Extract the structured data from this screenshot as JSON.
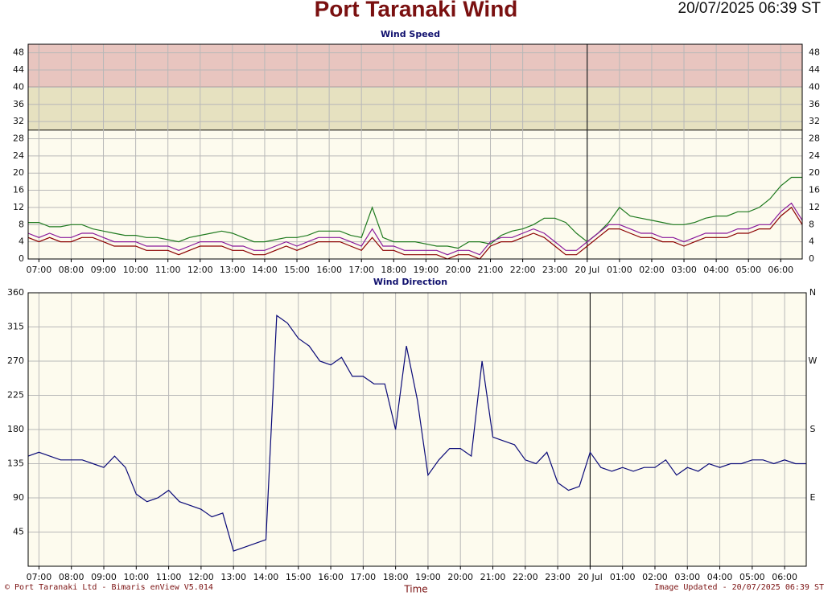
{
  "header": {
    "title": "Port Taranaki Wind",
    "timestamp": "20/07/2025 06:39 ST"
  },
  "footer": {
    "copyright": "© Port Taranaki Ltd - Bimaris enView V5.014",
    "axis_label": "Time",
    "updated": "Image Updated - 20/07/2025 06:39 ST"
  },
  "chart_data": [
    {
      "type": "line",
      "title": "Wind Speed",
      "x": [
        "06:40",
        "07:00",
        "07:20",
        "07:40",
        "08:00",
        "08:20",
        "08:40",
        "09:00",
        "09:20",
        "09:40",
        "10:00",
        "10:20",
        "10:40",
        "11:00",
        "11:20",
        "11:40",
        "12:00",
        "12:20",
        "12:40",
        "13:00",
        "13:20",
        "13:40",
        "14:00",
        "14:20",
        "14:40",
        "15:00",
        "15:20",
        "15:40",
        "16:00",
        "16:20",
        "16:40",
        "17:00",
        "17:20",
        "17:40",
        "18:00",
        "18:20",
        "18:40",
        "19:00",
        "19:20",
        "19:40",
        "20:00",
        "20:20",
        "20:40",
        "21:00",
        "21:20",
        "21:40",
        "22:00",
        "22:20",
        "22:40",
        "23:00",
        "23:20",
        "23:40",
        "00:00",
        "00:20",
        "00:40",
        "01:00",
        "01:20",
        "01:40",
        "02:00",
        "02:20",
        "02:40",
        "03:00",
        "03:20",
        "03:40",
        "04:00",
        "04:20",
        "04:40",
        "05:00",
        "05:20",
        "05:40",
        "06:00",
        "06:20",
        "06:40"
      ],
      "series": [
        {
          "color": "#1f7a1f",
          "values": [
            8.5,
            8.5,
            7.5,
            7.5,
            8,
            8,
            7,
            6.5,
            6,
            5.5,
            5.5,
            5,
            5,
            4.5,
            4,
            5,
            5.5,
            6,
            6.5,
            6,
            5,
            4,
            4,
            4.5,
            5,
            5,
            5.5,
            6.5,
            6.5,
            6.5,
            5.5,
            5,
            12,
            5,
            4,
            4,
            4,
            3.5,
            3,
            3,
            2.5,
            4,
            4,
            3.5,
            5.5,
            6.5,
            7,
            8,
            9.5,
            9.5,
            8.5,
            6,
            4,
            6,
            8.5,
            12,
            10,
            9.5,
            9,
            8.5,
            8,
            8,
            8.5,
            9.5,
            10,
            10,
            11,
            11,
            12,
            14,
            17,
            19,
            19
          ]
        },
        {
          "color": "#8b0000",
          "values": [
            5,
            4,
            5,
            4,
            4,
            5,
            5,
            4,
            3,
            3,
            3,
            2,
            2,
            2,
            1,
            2,
            3,
            3,
            3,
            2,
            2,
            1,
            1,
            2,
            3,
            2,
            3,
            4,
            4,
            4,
            3,
            2,
            5,
            2,
            2,
            1,
            1,
            1,
            1,
            0,
            1,
            1,
            0,
            3,
            4,
            4,
            5,
            6,
            5,
            3,
            1,
            1,
            3,
            5,
            7,
            7,
            6,
            5,
            5,
            4,
            4,
            3,
            4,
            5,
            5,
            5,
            6,
            6,
            7,
            7,
            10,
            12,
            8
          ]
        },
        {
          "color": "#8a1a9b",
          "values": [
            6,
            5,
            6,
            5,
            5,
            6,
            6,
            5,
            4,
            4,
            4,
            3,
            3,
            3,
            2,
            3,
            4,
            4,
            4,
            3,
            3,
            2,
            2,
            3,
            4,
            3,
            4,
            5,
            5,
            5,
            4,
            3,
            7,
            3,
            3,
            2,
            2,
            2,
            2,
            1,
            2,
            2,
            1,
            4,
            5,
            5,
            6,
            7,
            6,
            4,
            2,
            2,
            4,
            6,
            8,
            8,
            7,
            6,
            6,
            5,
            5,
            4,
            5,
            6,
            6,
            6,
            7,
            7,
            8,
            8,
            11,
            13,
            9
          ]
        }
      ],
      "ylim": [
        0,
        50
      ],
      "yticks": [
        0,
        4,
        8,
        12,
        16,
        20,
        24,
        28,
        32,
        36,
        40,
        44,
        48
      ],
      "bands": [
        {
          "from": 40,
          "to": 50,
          "color": "#e8c5bf"
        },
        {
          "from": 30,
          "to": 40,
          "color": "#e6e1c0"
        }
      ],
      "xticks": [
        "07:00",
        "08:00",
        "09:00",
        "10:00",
        "11:00",
        "12:00",
        "13:00",
        "14:00",
        "15:00",
        "16:00",
        "17:00",
        "18:00",
        "19:00",
        "20:00",
        "21:00",
        "22:00",
        "23:00",
        {
          "value": "00:00",
          "label": "20 Jul"
        },
        "01:00",
        "02:00",
        "03:00",
        "04:00",
        "05:00",
        "06:00"
      ],
      "day_line": "00:00",
      "grid": true
    },
    {
      "type": "line",
      "title": "Wind Direction",
      "x": [
        "06:40",
        "07:00",
        "07:20",
        "07:40",
        "08:00",
        "08:20",
        "08:40",
        "09:00",
        "09:20",
        "09:40",
        "10:00",
        "10:20",
        "10:40",
        "11:00",
        "11:20",
        "11:40",
        "12:00",
        "12:20",
        "12:40",
        "13:00",
        "13:20",
        "13:40",
        "14:00",
        "14:20",
        "14:40",
        "15:00",
        "15:20",
        "15:40",
        "16:00",
        "16:20",
        "16:40",
        "17:00",
        "17:20",
        "17:40",
        "18:00",
        "18:20",
        "18:40",
        "19:00",
        "19:20",
        "19:40",
        "20:00",
        "20:20",
        "20:40",
        "21:00",
        "21:20",
        "21:40",
        "22:00",
        "22:20",
        "22:40",
        "23:00",
        "23:20",
        "23:40",
        "00:00",
        "00:20",
        "00:40",
        "01:00",
        "01:20",
        "01:40",
        "02:00",
        "02:20",
        "02:40",
        "03:00",
        "03:20",
        "03:40",
        "04:00",
        "04:20",
        "04:40",
        "05:00",
        "05:20",
        "05:40",
        "06:00",
        "06:20",
        "06:40"
      ],
      "series": [
        {
          "color": "#0a0a78",
          "values": [
            145,
            150,
            145,
            140,
            140,
            140,
            135,
            130,
            145,
            130,
            95,
            85,
            90,
            100,
            85,
            80,
            75,
            65,
            70,
            20,
            25,
            30,
            35,
            330,
            320,
            300,
            290,
            270,
            265,
            275,
            250,
            250,
            240,
            240,
            180,
            290,
            220,
            120,
            140,
            155,
            155,
            145,
            270,
            170,
            165,
            160,
            140,
            135,
            150,
            110,
            100,
            105,
            150,
            130,
            125,
            130,
            125,
            130,
            130,
            140,
            120,
            130,
            125,
            135,
            130,
            135,
            135,
            140,
            140,
            135,
            140,
            135,
            135
          ]
        }
      ],
      "ylim": [
        0,
        360
      ],
      "yticks": [
        45,
        90,
        135,
        180,
        225,
        270,
        315,
        360
      ],
      "y2lim": [
        0,
        360
      ],
      "y2ticks": [
        {
          "value": 90,
          "label": "E"
        },
        {
          "value": 180,
          "label": "S"
        },
        {
          "value": 270,
          "label": "W"
        },
        {
          "value": 360,
          "label": "N"
        }
      ],
      "xticks": [
        "07:00",
        "08:00",
        "09:00",
        "10:00",
        "11:00",
        "12:00",
        "13:00",
        "14:00",
        "15:00",
        "16:00",
        "17:00",
        "18:00",
        "19:00",
        "20:00",
        "21:00",
        "22:00",
        "23:00",
        {
          "value": "00:00",
          "label": "20 Jul"
        },
        "01:00",
        "02:00",
        "03:00",
        "04:00",
        "05:00",
        "06:00"
      ],
      "day_line": "00:00",
      "grid": true
    }
  ]
}
